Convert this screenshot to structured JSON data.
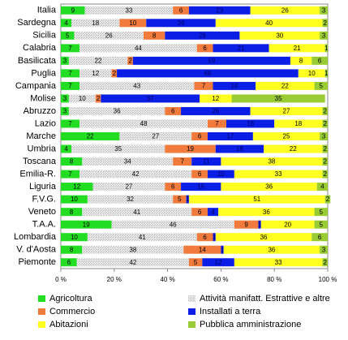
{
  "chart_data": {
    "type": "stacked-bar-horizontal",
    "categories": [
      "Italia",
      "Sardegna",
      "Sicilia",
      "Calabria",
      "Basilicata",
      "Puglia",
      "Campania",
      "Molise",
      "Abruzzo",
      "Lazio",
      "Marche",
      "Umbria",
      "Toscana",
      "Emilia-R.",
      "Liguria",
      "F.V.G.",
      "Veneto",
      "T.A.A.",
      "Lombardia",
      "V. d'Aosta",
      "Piemonte"
    ],
    "series": [
      {
        "name": "Agricoltura",
        "color": "#22dd22",
        "values": [
          9,
          4,
          5,
          7,
          3,
          7,
          7,
          3,
          3,
          7,
          22,
          4,
          8,
          7,
          12,
          10,
          8,
          19,
          10,
          8,
          6
        ]
      },
      {
        "name": "Attività manifatt. Estrattive e altre",
        "color": "#c8c8c8",
        "pattern": "hatch",
        "values": [
          33,
          18,
          26,
          44,
          22,
          12,
          43,
          10,
          36,
          48,
          27,
          35,
          34,
          42,
          27,
          32,
          41,
          46,
          41,
          38,
          42
        ]
      },
      {
        "name": "Commercio",
        "color": "#f07b3c",
        "values": [
          6,
          10,
          8,
          6,
          2,
          2,
          7,
          2,
          6,
          7,
          6,
          19,
          7,
          6,
          6,
          5,
          6,
          9,
          6,
          14,
          5
        ]
      },
      {
        "name": "Installati a terra",
        "color": "#0a1ee6",
        "values": [
          23,
          26,
          28,
          21,
          59,
          68,
          16,
          37,
          26,
          18,
          17,
          18,
          11,
          10,
          15,
          1,
          4,
          1,
          1,
          1,
          12
        ]
      },
      {
        "name": "Abitazioni",
        "color": "#ffff22",
        "values": [
          26,
          40,
          30,
          21,
          8,
          10,
          22,
          12,
          27,
          18,
          25,
          22,
          38,
          33,
          36,
          51,
          36,
          20,
          36,
          36,
          33
        ]
      },
      {
        "name": "Pubblica amministrazione",
        "color": "#99cc33",
        "values": [
          3,
          2,
          3,
          1,
          6,
          1,
          5,
          35,
          2,
          2,
          3,
          2,
          2,
          2,
          4,
          2,
          5,
          5,
          6,
          3,
          2
        ]
      }
    ],
    "xlim": [
      0,
      100
    ],
    "xticks": [
      {
        "value": 0,
        "label": "0 %"
      },
      {
        "value": 20,
        "label": "20 %"
      },
      {
        "value": 40,
        "label": "40 %"
      },
      {
        "value": 60,
        "label": "60 %"
      },
      {
        "value": 80,
        "label": "80 %"
      },
      {
        "value": 100,
        "label": "100 %"
      }
    ]
  }
}
